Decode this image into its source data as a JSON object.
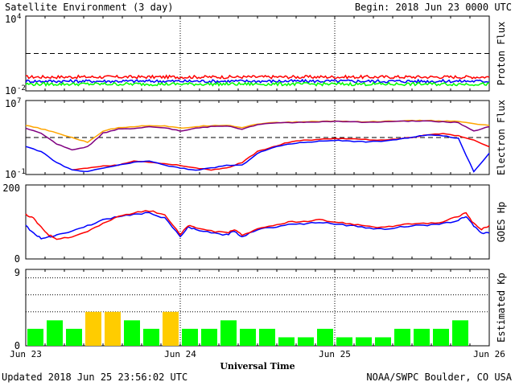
{
  "header": {
    "title": "Satellite Environment (3 day)",
    "begin": "Begin:  2018 Jun 23 0000 UTC"
  },
  "footer": {
    "updated": "Updated 2018 Jun 25 23:56:02 UTC",
    "source": "NOAA/SWPC Boulder, CO USA"
  },
  "xaxis": {
    "title": "Universal Time",
    "ticks": [
      "Jun 23",
      "Jun 24",
      "Jun 25",
      "Jun 26"
    ]
  },
  "chart_data": [
    {
      "type": "line",
      "ylabel": "Proton Flux",
      "yscale": "log",
      "ylim": [
        0.01,
        10000
      ],
      "ytick_base": [
        "10",
        "10"
      ],
      "ytick_exp": [
        "4",
        "-2"
      ],
      "threshold": 10,
      "x_range_days": [
        0,
        3
      ],
      "series": [
        {
          "color": "#ff0000",
          "level": 0.13
        },
        {
          "color": "#0000ff",
          "level": 0.06
        },
        {
          "color": "#00ff00",
          "level": 0.035
        }
      ]
    },
    {
      "type": "line",
      "ylabel": "Electron Flux",
      "yscale": "log",
      "ylim": [
        0.1,
        10000000
      ],
      "ytick_base": [
        "10",
        "10"
      ],
      "ytick_exp": [
        "7",
        "-1"
      ],
      "threshold": 1000,
      "x_range_days": [
        0,
        3
      ],
      "series": [
        {
          "color": "#ffa500",
          "x": [
            0,
            0.1,
            0.2,
            0.3,
            0.4,
            0.5,
            0.6,
            0.7,
            0.8,
            0.9,
            1.0,
            1.1,
            1.2,
            1.3,
            1.4,
            1.5,
            1.6,
            1.7,
            1.8,
            1.9,
            2.0,
            2.1,
            2.2,
            2.3,
            2.4,
            2.5,
            2.6,
            2.7,
            2.8,
            2.9,
            3.0
          ],
          "y": [
            20000,
            9000,
            3000,
            1000,
            300,
            5000,
            12000,
            15000,
            20000,
            18000,
            10000,
            15000,
            20000,
            22000,
            12000,
            30000,
            40000,
            45000,
            50000,
            55000,
            60000,
            55000,
            50000,
            55000,
            60000,
            65000,
            70000,
            60000,
            55000,
            30000,
            20000
          ]
        },
        {
          "color": "#800080",
          "x": [
            0,
            0.1,
            0.2,
            0.3,
            0.4,
            0.5,
            0.6,
            0.7,
            0.8,
            0.9,
            1.0,
            1.1,
            1.2,
            1.3,
            1.4,
            1.5,
            1.6,
            1.7,
            1.8,
            1.9,
            2.0,
            2.1,
            2.2,
            2.3,
            2.4,
            2.5,
            2.6,
            2.7,
            2.8,
            2.9,
            3.0
          ],
          "y": [
            10000,
            3000,
            200,
            50,
            100,
            3000,
            8000,
            10000,
            15000,
            12000,
            5000,
            10000,
            15000,
            18000,
            8000,
            25000,
            35000,
            40000,
            45000,
            50000,
            55000,
            50000,
            45000,
            50000,
            55000,
            60000,
            60000,
            50000,
            40000,
            5000,
            15000
          ]
        },
        {
          "color": "#ff0000",
          "x": [
            0.3,
            0.4,
            0.5,
            0.6,
            0.7,
            0.8,
            0.9,
            1.0,
            1.1,
            1.2,
            1.3,
            1.4,
            1.5,
            1.6,
            1.7,
            1.8,
            1.9,
            2.0,
            2.1,
            2.2,
            2.3,
            2.4,
            2.5,
            2.6,
            2.7,
            2.8,
            2.9,
            3.0
          ],
          "y": [
            0.3,
            0.5,
            0.8,
            1,
            3,
            2,
            1.5,
            1,
            0.5,
            0.3,
            0.5,
            2,
            30,
            100,
            300,
            500,
            600,
            800,
            700,
            600,
            500,
            700,
            1000,
            2000,
            2500,
            1500,
            500,
            100
          ]
        },
        {
          "color": "#0000ff",
          "x": [
            0,
            0.1,
            0.2,
            0.3,
            0.4,
            0.5,
            0.6,
            0.7,
            0.8,
            0.9,
            1.0,
            1.1,
            1.2,
            1.3,
            1.4,
            1.5,
            1.6,
            1.7,
            1.8,
            1.9,
            2.0,
            2.1,
            2.2,
            2.3,
            2.4,
            2.5,
            2.6,
            2.7,
            2.8,
            2.9,
            3.0
          ],
          "y": [
            100,
            30,
            2,
            0.3,
            0.2,
            0.5,
            1,
            2,
            3,
            1,
            0.5,
            0.3,
            0.5,
            1,
            1,
            20,
            80,
            200,
            300,
            400,
            500,
            400,
            350,
            400,
            600,
            1000,
            2000,
            1500,
            800,
            0.2,
            20
          ]
        }
      ]
    },
    {
      "type": "line",
      "ylabel": "GOES Hp",
      "ylim": [
        0,
        200
      ],
      "yticks": [
        "200",
        "0"
      ],
      "x_range_days": [
        0,
        3
      ],
      "series": [
        {
          "color": "#0000ff",
          "x": [
            0,
            0.05,
            0.1,
            0.15,
            0.2,
            0.3,
            0.4,
            0.5,
            0.6,
            0.7,
            0.8,
            0.9,
            1.0,
            1.05,
            1.1,
            1.2,
            1.3,
            1.35,
            1.4,
            1.5,
            1.6,
            1.7,
            1.8,
            1.9,
            2.0,
            2.1,
            2.2,
            2.3,
            2.4,
            2.5,
            2.6,
            2.7,
            2.8,
            2.85,
            2.9,
            2.95,
            3.0
          ],
          "y": [
            90,
            70,
            55,
            60,
            65,
            75,
            90,
            105,
            115,
            120,
            125,
            110,
            60,
            85,
            80,
            70,
            65,
            75,
            60,
            80,
            85,
            95,
            95,
            100,
            95,
            90,
            85,
            80,
            85,
            90,
            90,
            95,
            105,
            115,
            90,
            70,
            70
          ]
        },
        {
          "color": "#ff0000",
          "x": [
            0,
            0.05,
            0.1,
            0.15,
            0.2,
            0.3,
            0.4,
            0.5,
            0.6,
            0.7,
            0.8,
            0.9,
            1.0,
            1.05,
            1.1,
            1.2,
            1.3,
            1.35,
            1.4,
            1.5,
            1.6,
            1.7,
            1.8,
            1.9,
            2.0,
            2.1,
            2.2,
            2.3,
            2.4,
            2.5,
            2.6,
            2.7,
            2.8,
            2.85,
            2.9,
            2.95,
            3.0
          ],
          "y": [
            120,
            110,
            85,
            65,
            55,
            60,
            75,
            95,
            115,
            125,
            130,
            120,
            65,
            90,
            85,
            75,
            70,
            80,
            65,
            80,
            90,
            100,
            100,
            105,
            100,
            95,
            90,
            85,
            90,
            95,
            95,
            100,
            115,
            125,
            95,
            80,
            90
          ]
        }
      ]
    },
    {
      "type": "bar",
      "ylabel": "Estimated Kp",
      "ylim": [
        0,
        9
      ],
      "yticks": [
        "9",
        "0"
      ],
      "dotted_levels": [
        4,
        6,
        8
      ],
      "x_range_days": [
        0,
        3
      ],
      "values": [
        2,
        3,
        2,
        4,
        4,
        3,
        2,
        4,
        2,
        2,
        3,
        2,
        2,
        1,
        1,
        2,
        1,
        1,
        1,
        2,
        2,
        2,
        3,
        0
      ],
      "colors": {
        "quiet": "#00ff00",
        "active": "#ffcc00"
      }
    }
  ]
}
